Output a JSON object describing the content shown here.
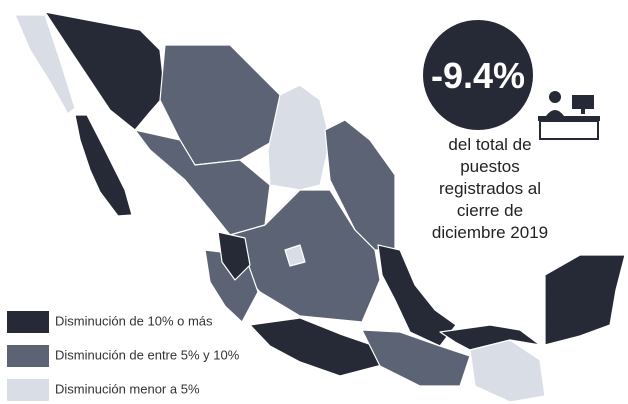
{
  "headline": {
    "value": "-9.4%",
    "caption": [
      "del total de",
      "puestos",
      "registrados al",
      "cierre de",
      "diciembre 2019"
    ]
  },
  "legend": [
    {
      "label": "Disminución de 10% o más",
      "color": "#262a36"
    },
    {
      "label": "Disminución de entre 5% y 10%",
      "color": "#5b6374"
    },
    {
      "label": "Disminución menor a 5%",
      "color": "#d9dde6"
    }
  ]
}
